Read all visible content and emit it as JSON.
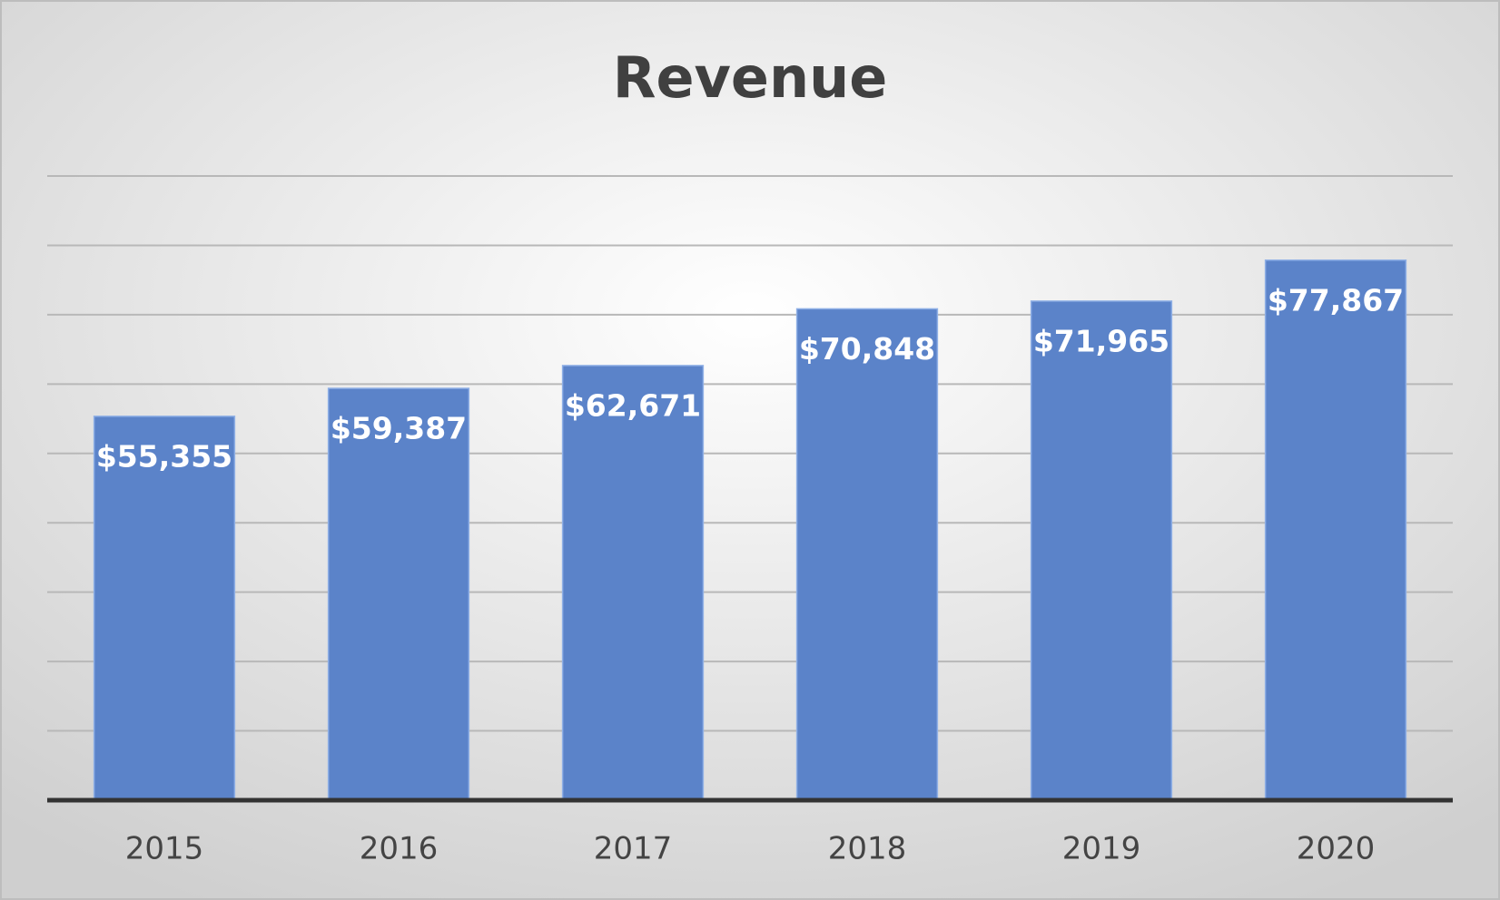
{
  "chart_data": {
    "type": "bar",
    "title": "Revenue",
    "categories": [
      "2015",
      "2016",
      "2017",
      "2018",
      "2019",
      "2020"
    ],
    "values": [
      55355,
      59387,
      62671,
      70848,
      71965,
      77867
    ],
    "value_labels": [
      "$55,355",
      "$59,387",
      "$62,671",
      "$70,848",
      "$71,965",
      "$77,867"
    ],
    "color": "#5b83c9",
    "ylim": [
      0,
      90000
    ],
    "yticks": [
      0,
      10000,
      20000,
      30000,
      40000,
      50000,
      60000,
      70000,
      80000,
      90000
    ],
    "grid": true
  }
}
